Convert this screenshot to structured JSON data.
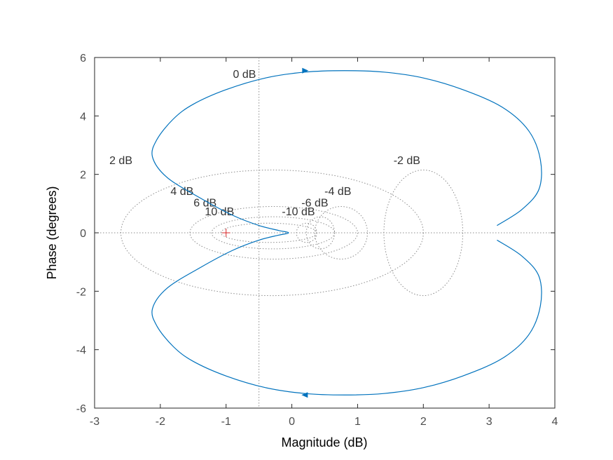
{
  "chart_data": {
    "type": "line",
    "title": "",
    "xlabel": "Magnitude (dB)",
    "ylabel": "Phase (degrees)",
    "xlim": [
      -3,
      4
    ],
    "ylim": [
      -6,
      6
    ],
    "xticks": [
      -3,
      -2,
      -1,
      0,
      1,
      2,
      3,
      4
    ],
    "yticks": [
      -6,
      -4,
      -2,
      0,
      2,
      4,
      6
    ],
    "xtick_labels": [
      "-3",
      "-2",
      "-1",
      "0",
      "1",
      "2",
      "3",
      "4"
    ],
    "ytick_labels": [
      "-6",
      "-4",
      "-2",
      "0",
      "2",
      "4",
      "6"
    ],
    "grid": "M-circles (dotted)",
    "critical_point": {
      "x": -1,
      "y": 0,
      "marker": "+"
    },
    "grid_labels": [
      {
        "text": "0 dB",
        "x": -0.72,
        "y": 5.3
      },
      {
        "text": "2 dB",
        "x": -2.6,
        "y": 2.35
      },
      {
        "text": "-2 dB",
        "x": 1.75,
        "y": 2.35
      },
      {
        "text": "4 dB",
        "x": -1.67,
        "y": 1.3
      },
      {
        "text": "-4 dB",
        "x": 0.7,
        "y": 1.3
      },
      {
        "text": "6 dB",
        "x": -1.32,
        "y": 0.9
      },
      {
        "text": "-6 dB",
        "x": 0.35,
        "y": 0.9
      },
      {
        "text": "10 dB",
        "x": -1.1,
        "y": 0.6
      },
      {
        "text": "-10 dB",
        "x": 0.1,
        "y": 0.6
      }
    ],
    "series": [
      {
        "color": "#0072bd",
        "x": [
          3.12,
          3.5,
          3.76,
          3.78,
          3.6,
          3.2,
          2.6,
          2.0,
          1.4,
          0.8,
          0.2,
          -0.4,
          -1.0,
          -1.5,
          -1.8,
          -2.05,
          -2.12,
          -1.9,
          -1.4,
          -0.9,
          -0.5,
          -0.2,
          -0.05,
          -0.2,
          -0.5,
          -0.9,
          -1.4,
          -1.9,
          -2.12,
          -2.05,
          -1.8,
          -1.5,
          -1.0,
          -0.4,
          0.2,
          0.8,
          1.4,
          2.0,
          2.6,
          3.2,
          3.6,
          3.78,
          3.76,
          3.5,
          3.12
        ],
        "y": [
          0.25,
          0.8,
          1.5,
          2.5,
          3.5,
          4.3,
          4.9,
          5.3,
          5.5,
          5.55,
          5.5,
          5.3,
          4.9,
          4.4,
          3.9,
          3.2,
          2.6,
          1.9,
          1.2,
          0.6,
          0.25,
          0.08,
          0.0,
          -0.08,
          -0.25,
          -0.6,
          -1.2,
          -1.9,
          -2.6,
          -3.2,
          -3.9,
          -4.4,
          -4.9,
          -5.3,
          -5.5,
          -5.55,
          -5.5,
          -5.3,
          -4.9,
          -4.3,
          -3.5,
          -2.5,
          -1.5,
          -0.8,
          -0.25
        ]
      }
    ]
  }
}
